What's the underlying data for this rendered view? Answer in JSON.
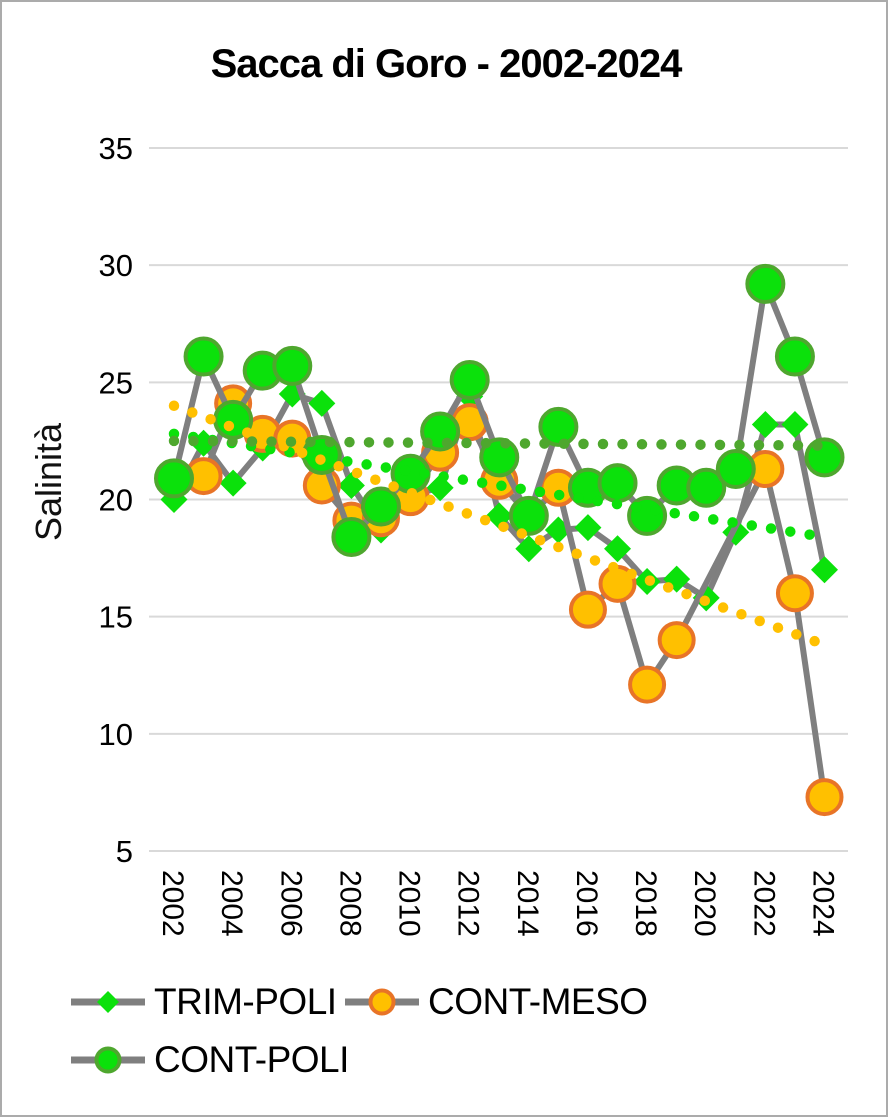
{
  "title": "Sacca di Goro - 2002-2024",
  "y_axis": {
    "label": "Salinità",
    "ticks": [
      35,
      30,
      25,
      20,
      15,
      10,
      5
    ],
    "min": 5,
    "max": 35
  },
  "x_axis": {
    "tick_years": [
      2002,
      2004,
      2006,
      2008,
      2010,
      2012,
      2014,
      2016,
      2018,
      2020,
      2022,
      2024
    ]
  },
  "legend": [
    {
      "label": "TRIM-POLI",
      "marker": "diamond"
    },
    {
      "label": "CONT-MESO",
      "marker": "circle-orange"
    },
    {
      "label": "CONT-POLI",
      "marker": "circle-green"
    }
  ],
  "colors": {
    "bright_green": "#0be10b",
    "dark_green": "#4EA72E",
    "orange_fill": "#FFC000",
    "orange_border": "#E87427",
    "series_line_gray": "#7F7F7F",
    "gridline": "#D9D9D9",
    "text": "#000000",
    "frame_border": "#ababab"
  },
  "chart_data": {
    "type": "line",
    "title": "Sacca di Goro - 2002-2024",
    "ylabel": "Salinità",
    "ylim": [
      5,
      35
    ],
    "grid": "horizontal",
    "legend_position": "bottom",
    "x": [
      2002,
      2003,
      2004,
      2005,
      2006,
      2007,
      2008,
      2009,
      2010,
      2011,
      2012,
      2013,
      2014,
      2015,
      2016,
      2017,
      2018,
      2019,
      2020,
      2021,
      2022,
      2023,
      2024
    ],
    "series": [
      {
        "name": "TRIM-POLI",
        "marker": "diamond",
        "values": [
          20.0,
          22.4,
          20.7,
          22.2,
          24.5,
          24.1,
          20.6,
          18.7,
          20.2,
          20.5,
          24.4,
          19.3,
          17.9,
          18.7,
          18.8,
          17.9,
          16.5,
          16.6,
          15.8,
          18.6,
          23.2,
          23.2,
          17.0
        ]
      },
      {
        "name": "CONT-MESO",
        "marker": "circle-orange",
        "values": [
          20.9,
          21.0,
          24.1,
          22.8,
          22.6,
          20.6,
          19.1,
          19.2,
          20.1,
          22.0,
          23.3,
          20.8,
          19.3,
          20.5,
          15.3,
          16.4,
          12.1,
          14.0,
          null,
          null,
          21.3,
          16.0,
          7.3
        ]
      },
      {
        "name": "CONT-POLI",
        "marker": "circle-green",
        "values": [
          20.9,
          26.1,
          23.4,
          25.5,
          25.7,
          21.9,
          18.4,
          19.7,
          21.1,
          22.9,
          25.1,
          21.8,
          19.3,
          23.1,
          20.5,
          20.7,
          19.3,
          20.6,
          20.5,
          21.3,
          29.2,
          26.1,
          21.8
        ]
      }
    ],
    "trendlines": [
      {
        "name": "TRIM-POLI trend",
        "style": "dotted",
        "start_year": 2002,
        "start_value": 22.8,
        "end_year": 2024,
        "end_value": 18.4
      },
      {
        "name": "CONT-MESO trend",
        "style": "dotted",
        "start_year": 2002,
        "start_value": 24.0,
        "end_year": 2024,
        "end_value": 13.8
      },
      {
        "name": "CONT-POLI trend",
        "style": "dotted",
        "start_year": 2002,
        "start_value": 22.5,
        "end_year": 2024,
        "end_value": 22.3
      }
    ]
  }
}
